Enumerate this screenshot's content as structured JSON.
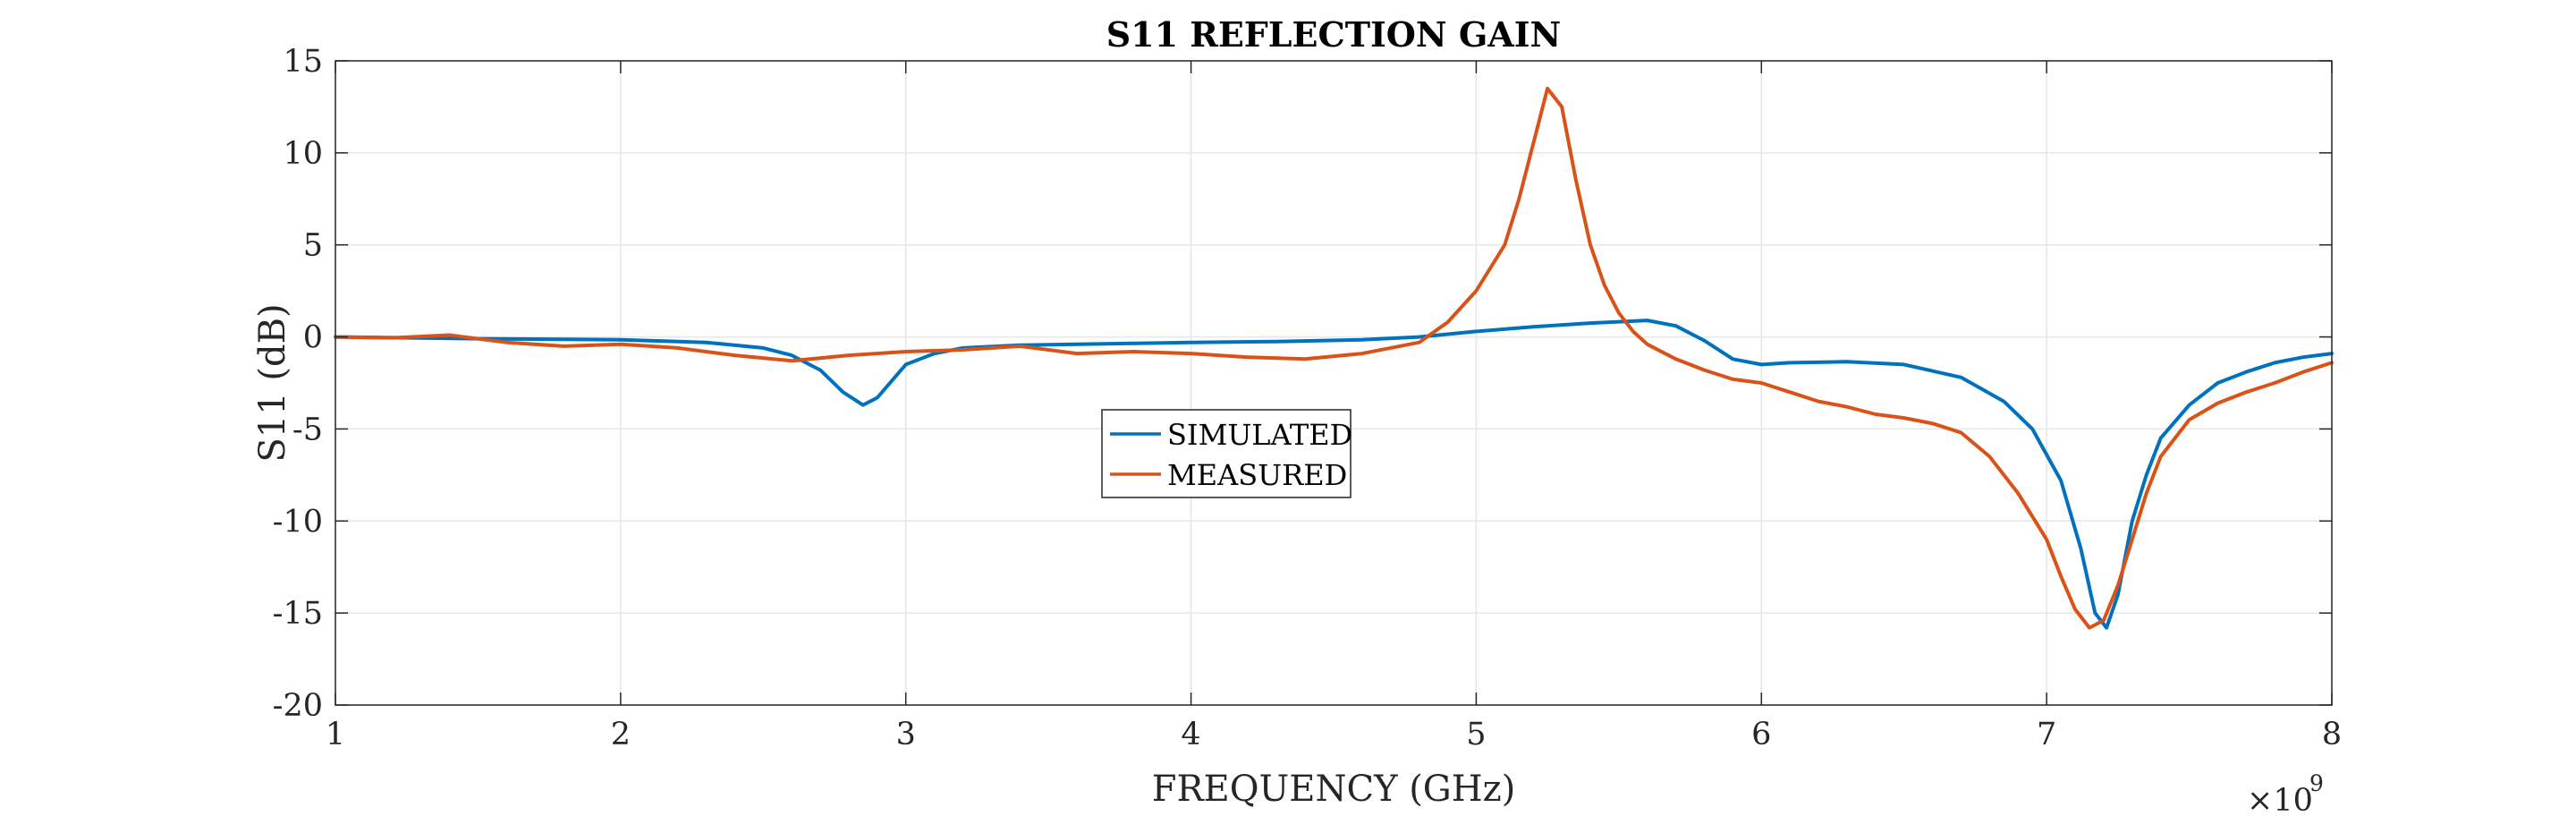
{
  "chart_data": {
    "type": "line",
    "title": "S11 REFLECTION GAIN",
    "xlabel": "FREQUENCY (GHz)",
    "ylabel": "S11 (dB)",
    "x_exponent_label": "×10",
    "x_exponent_power": "9",
    "xlim": [
      1,
      8
    ],
    "ylim": [
      -20,
      15
    ],
    "xticks": [
      "1",
      "2",
      "3",
      "4",
      "5",
      "6",
      "7",
      "8"
    ],
    "yticks": [
      "15",
      "10",
      "5",
      "0",
      "-5",
      "-10",
      "-15",
      "-20"
    ],
    "grid": true,
    "legend_position": "center-left",
    "series": [
      {
        "name": "SIMULATED",
        "color": "#0072BD",
        "x": [
          1.0,
          1.5,
          2.0,
          2.3,
          2.5,
          2.6,
          2.7,
          2.78,
          2.85,
          2.9,
          2.95,
          3.0,
          3.1,
          3.2,
          3.4,
          3.6,
          3.8,
          4.0,
          4.3,
          4.6,
          4.8,
          5.0,
          5.2,
          5.4,
          5.6,
          5.7,
          5.8,
          5.9,
          6.0,
          6.1,
          6.3,
          6.5,
          6.7,
          6.85,
          6.95,
          7.05,
          7.12,
          7.17,
          7.21,
          7.25,
          7.3,
          7.35,
          7.4,
          7.5,
          7.6,
          7.7,
          7.8,
          7.9,
          8.0
        ],
        "y": [
          0.0,
          -0.1,
          -0.15,
          -0.3,
          -0.6,
          -1.0,
          -1.8,
          -3.0,
          -3.7,
          -3.3,
          -2.4,
          -1.5,
          -0.9,
          -0.6,
          -0.45,
          -0.4,
          -0.35,
          -0.3,
          -0.25,
          -0.15,
          0.0,
          0.3,
          0.55,
          0.75,
          0.9,
          0.6,
          -0.2,
          -1.2,
          -1.5,
          -1.4,
          -1.35,
          -1.5,
          -2.2,
          -3.5,
          -5.0,
          -7.8,
          -11.5,
          -15.0,
          -15.8,
          -14.0,
          -10.0,
          -7.5,
          -5.5,
          -3.7,
          -2.5,
          -1.9,
          -1.4,
          -1.1,
          -0.9
        ]
      },
      {
        "name": "MEASURED",
        "color": "#D95319",
        "x": [
          1.0,
          1.2,
          1.4,
          1.6,
          1.8,
          2.0,
          2.2,
          2.4,
          2.6,
          2.8,
          3.0,
          3.2,
          3.4,
          3.6,
          3.8,
          4.0,
          4.2,
          4.4,
          4.6,
          4.8,
          4.9,
          5.0,
          5.1,
          5.15,
          5.2,
          5.25,
          5.3,
          5.35,
          5.4,
          5.45,
          5.5,
          5.55,
          5.6,
          5.7,
          5.8,
          5.9,
          6.0,
          6.1,
          6.2,
          6.3,
          6.4,
          6.5,
          6.6,
          6.7,
          6.8,
          6.9,
          7.0,
          7.05,
          7.1,
          7.15,
          7.2,
          7.25,
          7.3,
          7.35,
          7.4,
          7.5,
          7.6,
          7.7,
          7.8,
          7.9,
          8.0
        ],
        "y": [
          0.0,
          -0.05,
          0.1,
          -0.3,
          -0.5,
          -0.4,
          -0.6,
          -1.0,
          -1.3,
          -1.0,
          -0.8,
          -0.7,
          -0.5,
          -0.9,
          -0.8,
          -0.9,
          -1.1,
          -1.2,
          -0.9,
          -0.3,
          0.8,
          2.5,
          5.0,
          7.5,
          10.5,
          13.5,
          12.5,
          8.5,
          5.0,
          2.8,
          1.3,
          0.3,
          -0.4,
          -1.2,
          -1.8,
          -2.3,
          -2.5,
          -3.0,
          -3.5,
          -3.8,
          -4.2,
          -4.4,
          -4.7,
          -5.2,
          -6.5,
          -8.5,
          -11.0,
          -13.0,
          -14.8,
          -15.8,
          -15.4,
          -13.5,
          -11.0,
          -8.5,
          -6.5,
          -4.5,
          -3.6,
          -3.0,
          -2.5,
          -1.9,
          -1.4
        ]
      }
    ]
  }
}
